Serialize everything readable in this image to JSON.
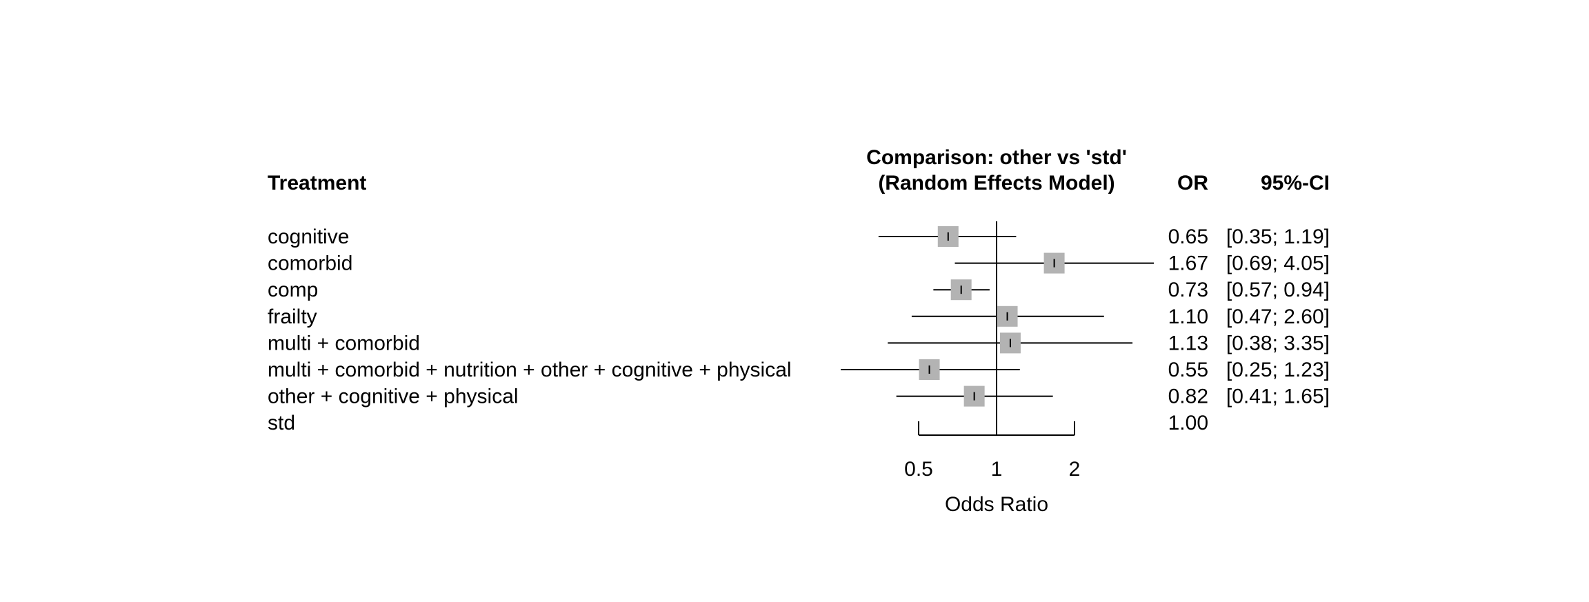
{
  "chart_data": {
    "type": "forest",
    "headers": {
      "label": "Treatment",
      "plot_title_line1": "Comparison: other vs 'std'",
      "plot_title_line2": "(Random Effects Model)",
      "estimate": "OR",
      "ci": "95%-CI"
    },
    "xlabel": "Odds Ratio",
    "x_scale": "log",
    "xlim": [
      0.5,
      2
    ],
    "ticks": [
      {
        "value": 0.5,
        "label": "0.5"
      },
      {
        "value": 1,
        "label": "1"
      },
      {
        "value": 2,
        "label": "2"
      }
    ],
    "reference_value": 1,
    "rows": [
      {
        "label": "cognitive",
        "or": 0.65,
        "lower": 0.35,
        "upper": 1.19,
        "or_text": "0.65",
        "ci_text": "[0.35; 1.19]"
      },
      {
        "label": "comorbid",
        "or": 1.67,
        "lower": 0.69,
        "upper": 4.05,
        "or_text": "1.67",
        "ci_text": "[0.69; 4.05]"
      },
      {
        "label": "comp",
        "or": 0.73,
        "lower": 0.57,
        "upper": 0.94,
        "or_text": "0.73",
        "ci_text": "[0.57; 0.94]"
      },
      {
        "label": "frailty",
        "or": 1.1,
        "lower": 0.47,
        "upper": 2.6,
        "or_text": "1.10",
        "ci_text": "[0.47; 2.60]"
      },
      {
        "label": "multi + comorbid",
        "or": 1.13,
        "lower": 0.38,
        "upper": 3.35,
        "or_text": "1.13",
        "ci_text": "[0.38; 3.35]"
      },
      {
        "label": "multi + comorbid + nutrition + other + cognitive + physical",
        "or": 0.55,
        "lower": 0.25,
        "upper": 1.23,
        "or_text": "0.55",
        "ci_text": "[0.25; 1.23]"
      },
      {
        "label": "other + cognitive + physical",
        "or": 0.82,
        "lower": 0.41,
        "upper": 1.65,
        "or_text": "0.82",
        "ci_text": "[0.41; 1.65]"
      },
      {
        "label": "std",
        "or": 1.0,
        "lower": null,
        "upper": null,
        "or_text": "1.00",
        "ci_text": ""
      }
    ],
    "colors": {
      "box": "#b3b3b3",
      "line": "#000000"
    }
  }
}
